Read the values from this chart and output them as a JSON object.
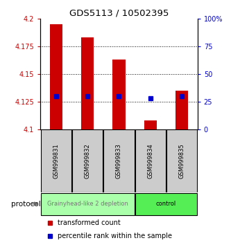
{
  "title": "GDS5113 / 10502395",
  "samples": [
    "GSM999831",
    "GSM999832",
    "GSM999833",
    "GSM999834",
    "GSM999835"
  ],
  "transformed_counts": [
    4.195,
    4.183,
    4.163,
    4.108,
    4.135
  ],
  "percentile_ranks": [
    4.13,
    4.13,
    4.13,
    4.128,
    4.13
  ],
  "bar_base": 4.1,
  "ylim_left": [
    4.1,
    4.2
  ],
  "ylim_right": [
    0,
    100
  ],
  "yticks_left": [
    4.1,
    4.125,
    4.15,
    4.175,
    4.2
  ],
  "yticks_right": [
    0,
    25,
    50,
    75,
    100
  ],
  "ytick_labels_left": [
    "4.1",
    "4.125",
    "4.15",
    "4.175",
    "4.2"
  ],
  "ytick_labels_right": [
    "0",
    "25",
    "50",
    "75",
    "100%"
  ],
  "groups": [
    {
      "label": "Grainyhead-like 2 depletion",
      "sample_indices": [
        0,
        1,
        2
      ],
      "color": "#aaffaa",
      "text_color": "#777777"
    },
    {
      "label": "control",
      "sample_indices": [
        3,
        4
      ],
      "color": "#55ee55",
      "text_color": "#000000"
    }
  ],
  "protocol_label": "protocol",
  "bar_color": "#cc0000",
  "percentile_color": "#0000cc",
  "legend_red_label": "transformed count",
  "legend_blue_label": "percentile rank within the sample",
  "tick_color_left": "#cc0000",
  "tick_color_right": "#0000cc",
  "bar_width": 0.4
}
